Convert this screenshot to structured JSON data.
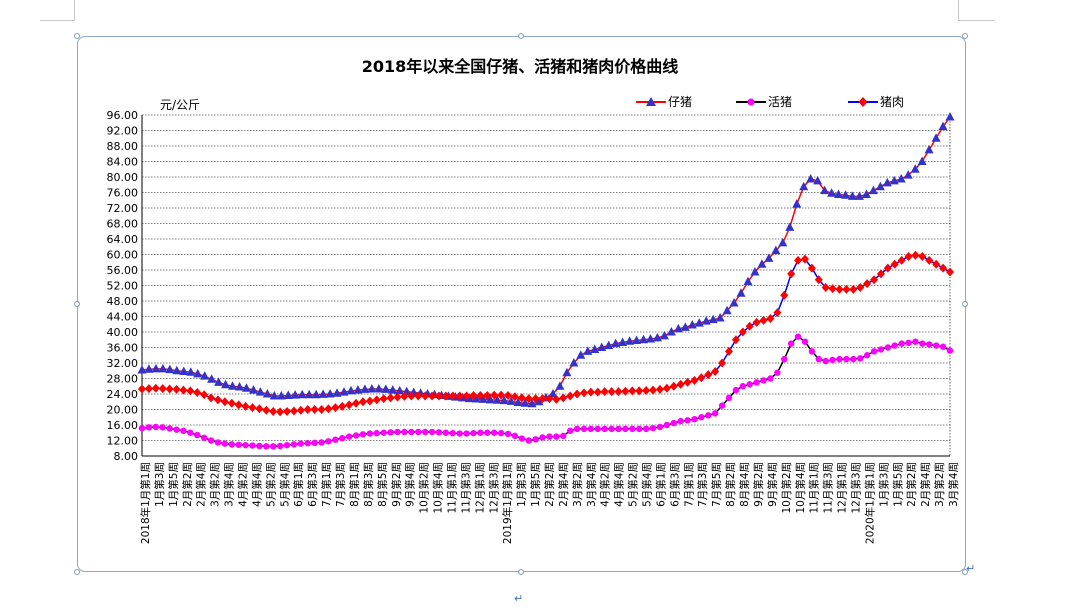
{
  "document": {
    "paragraph_mark": "↵"
  },
  "chart_data": {
    "type": "line",
    "title": "2018年以来全国仔猪、活猪和猪肉价格曲线",
    "ylabel": "元/公斤",
    "xlabel": "",
    "ylim": [
      8,
      96
    ],
    "yticks": [
      "96.00",
      "92.00",
      "88.00",
      "84.00",
      "80.00",
      "76.00",
      "72.00",
      "68.00",
      "64.00",
      "60.00",
      "56.00",
      "52.00",
      "48.00",
      "44.00",
      "40.00",
      "36.00",
      "32.00",
      "28.00",
      "24.00",
      "20.00",
      "16.00",
      "12.00",
      "8.00"
    ],
    "grid": true,
    "legend_position": "top-right",
    "x_tick_labels": [
      "2018年1月第1周",
      "1月第3周",
      "1月第5周",
      "2月第2周",
      "2月第4周",
      "3月第2周",
      "3月第4周",
      "4月第2周",
      "4月第4周",
      "5月第2周",
      "5月第4周",
      "6月第1周",
      "6月第3周",
      "7月第1周",
      "7月第3周",
      "8月第1周",
      "8月第3周",
      "8月第5周",
      "9月第2周",
      "9月第4周",
      "10月第2周",
      "10月第4周",
      "11月第1周",
      "11月第3周",
      "12月第1周",
      "12月第3周",
      "2019年1月第1周",
      "1月第3周",
      "1月第5周",
      "2月第2周",
      "2月第4周",
      "3月第2周",
      "3月第4周",
      "4月第2周",
      "4月第4周",
      "5月第2周",
      "5月第4周",
      "6月第1周",
      "6月第3周",
      "7月第1周",
      "7月第3周",
      "7月第5周",
      "8月第2周",
      "8月第4周",
      "9月第2周",
      "9月第4周",
      "10月第2周",
      "10月第4周",
      "11月第1周",
      "11月第3周",
      "12月第1周",
      "12月第3周",
      "2020年1月第1周",
      "1月第3周",
      "1月第5周",
      "2月第2周",
      "2月第4周",
      "3月第2周",
      "3月第4周"
    ],
    "series": [
      {
        "name": "仔猪",
        "color": "#ff0000",
        "marker_color": "#3333cc",
        "marker": "triangle",
        "values": [
          30.2,
          30.4,
          30.5,
          30.5,
          30.3,
          30.0,
          29.8,
          29.6,
          29.2,
          28.6,
          27.8,
          27.0,
          26.4,
          26.0,
          25.8,
          25.5,
          25.0,
          24.5,
          24.0,
          23.5,
          23.5,
          23.6,
          23.7,
          23.8,
          23.8,
          23.8,
          23.9,
          24.0,
          24.2,
          24.5,
          24.8,
          25.0,
          25.2,
          25.3,
          25.3,
          25.2,
          25.0,
          24.8,
          24.6,
          24.4,
          24.2,
          24.0,
          23.8,
          23.6,
          23.4,
          23.2,
          23.0,
          22.8,
          22.7,
          22.6,
          22.5,
          22.4,
          22.3,
          22.1,
          21.8,
          21.6,
          21.5,
          22.0,
          23.0,
          24.0,
          26.0,
          29.5,
          32.0,
          34.0,
          35.0,
          35.5,
          36.0,
          36.5,
          37.0,
          37.3,
          37.6,
          37.8,
          38.0,
          38.2,
          38.5,
          39.0,
          40.0,
          40.8,
          41.2,
          41.8,
          42.3,
          42.8,
          43.2,
          43.6,
          45.5,
          47.5,
          50.0,
          53.0,
          55.5,
          57.5,
          59.0,
          61.0,
          63.0,
          67.0,
          73.0,
          77.5,
          79.5,
          79.0,
          76.5,
          75.8,
          75.5,
          75.3,
          75.0,
          75.0,
          75.5,
          76.5,
          77.5,
          78.5,
          79.0,
          79.5,
          80.5,
          82.0,
          84.0,
          87.0,
          90.0,
          93.0,
          95.5
        ]
      },
      {
        "name": "活猪",
        "color": "#000000",
        "marker_color": "#ff00ff",
        "marker": "circle",
        "values": [
          15.2,
          15.4,
          15.5,
          15.4,
          15.1,
          14.8,
          14.5,
          14.0,
          13.4,
          12.7,
          12.0,
          11.5,
          11.2,
          11.0,
          10.9,
          10.8,
          10.7,
          10.6,
          10.5,
          10.5,
          10.6,
          10.8,
          11.0,
          11.2,
          11.3,
          11.4,
          11.5,
          11.8,
          12.2,
          12.6,
          13.0,
          13.3,
          13.6,
          13.8,
          13.9,
          14.0,
          14.1,
          14.2,
          14.2,
          14.2,
          14.2,
          14.2,
          14.2,
          14.1,
          14.0,
          13.9,
          13.8,
          13.8,
          13.9,
          14.0,
          14.0,
          14.0,
          13.9,
          13.7,
          13.2,
          12.5,
          12.0,
          12.3,
          12.8,
          13.0,
          13.0,
          13.2,
          14.5,
          15.0,
          15.0,
          15.0,
          15.0,
          15.0,
          15.0,
          15.0,
          15.0,
          15.0,
          15.0,
          15.0,
          15.2,
          15.5,
          16.0,
          16.5,
          17.0,
          17.2,
          17.5,
          18.0,
          18.5,
          19.0,
          21.0,
          23.0,
          25.0,
          26.0,
          26.5,
          27.0,
          27.5,
          28.0,
          29.5,
          33.0,
          37.0,
          38.8,
          37.5,
          35.0,
          33.0,
          32.5,
          32.8,
          33.0,
          33.0,
          33.0,
          33.2,
          34.0,
          35.0,
          35.5,
          36.0,
          36.5,
          37.0,
          37.2,
          37.5,
          37.0,
          36.8,
          36.5,
          36.2,
          35.2
        ]
      },
      {
        "name": "猪肉",
        "color": "#0000ff",
        "marker_color": "#ff0000",
        "marker": "diamond",
        "values": [
          25.3,
          25.4,
          25.5,
          25.4,
          25.3,
          25.2,
          25.0,
          24.8,
          24.4,
          23.8,
          23.0,
          22.5,
          22.0,
          21.6,
          21.2,
          20.8,
          20.5,
          20.2,
          19.8,
          19.5,
          19.4,
          19.5,
          19.6,
          19.8,
          20.0,
          20.0,
          20.0,
          20.2,
          20.5,
          20.8,
          21.2,
          21.6,
          22.0,
          22.2,
          22.5,
          22.8,
          23.0,
          23.2,
          23.4,
          23.5,
          23.5,
          23.5,
          23.5,
          23.5,
          23.5,
          23.5,
          23.5,
          23.5,
          23.6,
          23.6,
          23.6,
          23.7,
          23.7,
          23.6,
          23.3,
          23.0,
          22.8,
          22.8,
          22.8,
          22.8,
          22.6,
          23.0,
          23.5,
          24.0,
          24.3,
          24.5,
          24.5,
          24.6,
          24.6,
          24.6,
          24.7,
          24.8,
          24.8,
          24.9,
          25.0,
          25.2,
          25.5,
          26.0,
          26.5,
          27.0,
          27.5,
          28.2,
          29.0,
          29.8,
          32.0,
          35.0,
          38.0,
          40.0,
          41.5,
          42.5,
          43.0,
          43.5,
          45.0,
          49.5,
          55.0,
          58.5,
          58.8,
          56.5,
          53.5,
          51.5,
          51.2,
          51.0,
          51.0,
          51.0,
          51.5,
          52.5,
          53.5,
          55.0,
          56.5,
          57.5,
          58.5,
          59.5,
          59.8,
          59.5,
          58.5,
          57.5,
          56.5,
          55.5
        ]
      }
    ]
  }
}
